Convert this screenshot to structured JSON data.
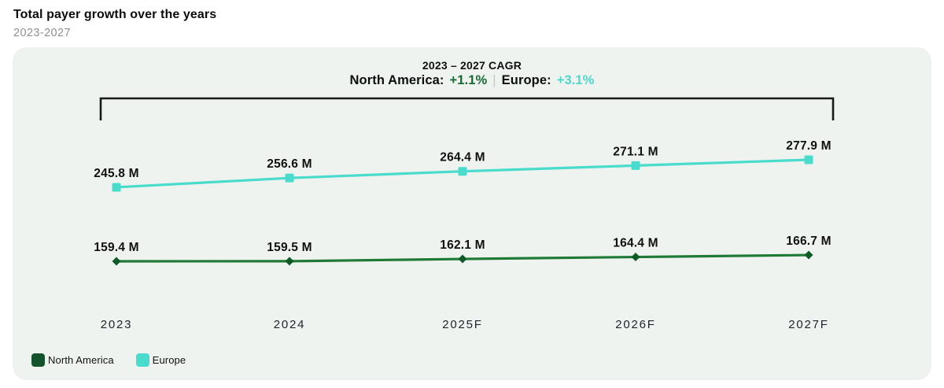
{
  "header": {
    "title": "Total payer growth over the years",
    "subtitle": "2023-2027"
  },
  "cagr_banner": {
    "title": "2023 – 2027 CAGR",
    "segments": {
      "na_label": "North America:",
      "na_value": "+1.1%",
      "divider": "|",
      "eu_label": "Europe:",
      "eu_value": "+3.1%"
    }
  },
  "legend": [
    {
      "label": "North America",
      "color": "#14532b"
    },
    {
      "label": "Europe",
      "color": "#49dbcc"
    }
  ],
  "colors": {
    "card_background": "#eff3f0",
    "bracket": "#191919",
    "na_line": "#1e7a34",
    "na_marker": "#0f5b27",
    "na_cagr_text": "#166b33",
    "eu_line": "#49dbcc",
    "eu_marker": "#49dbcc",
    "eu_cagr_text": "#4bd9ca",
    "value_label_text": "#101010"
  },
  "chart_data": {
    "type": "line",
    "title": "2023 – 2027 CAGR",
    "categories": [
      "2023",
      "2024",
      "2025F",
      "2026F",
      "2027F"
    ],
    "series": [
      {
        "name": "North America",
        "values": [
          159.4,
          159.5,
          162.1,
          164.4,
          166.7
        ],
        "labels": [
          "159.4 M",
          "159.5 M",
          "162.1 M",
          "164.4 M",
          "166.7 M"
        ],
        "cagr": "+1.1%",
        "color": "#1e7a34",
        "marker_color": "#0f5b27",
        "marker": "diamond"
      },
      {
        "name": "Europe",
        "values": [
          245.8,
          256.6,
          264.4,
          271.1,
          277.9
        ],
        "labels": [
          "245.8 M",
          "256.6 M",
          "264.4 M",
          "271.1 M",
          "277.9 M"
        ],
        "cagr": "+3.1%",
        "color": "#49dbcc",
        "marker_color": "#49dbcc",
        "marker": "square"
      }
    ],
    "unit": "M",
    "grid": false,
    "y_axis_visible": false,
    "legend_position": "bottom-left"
  }
}
